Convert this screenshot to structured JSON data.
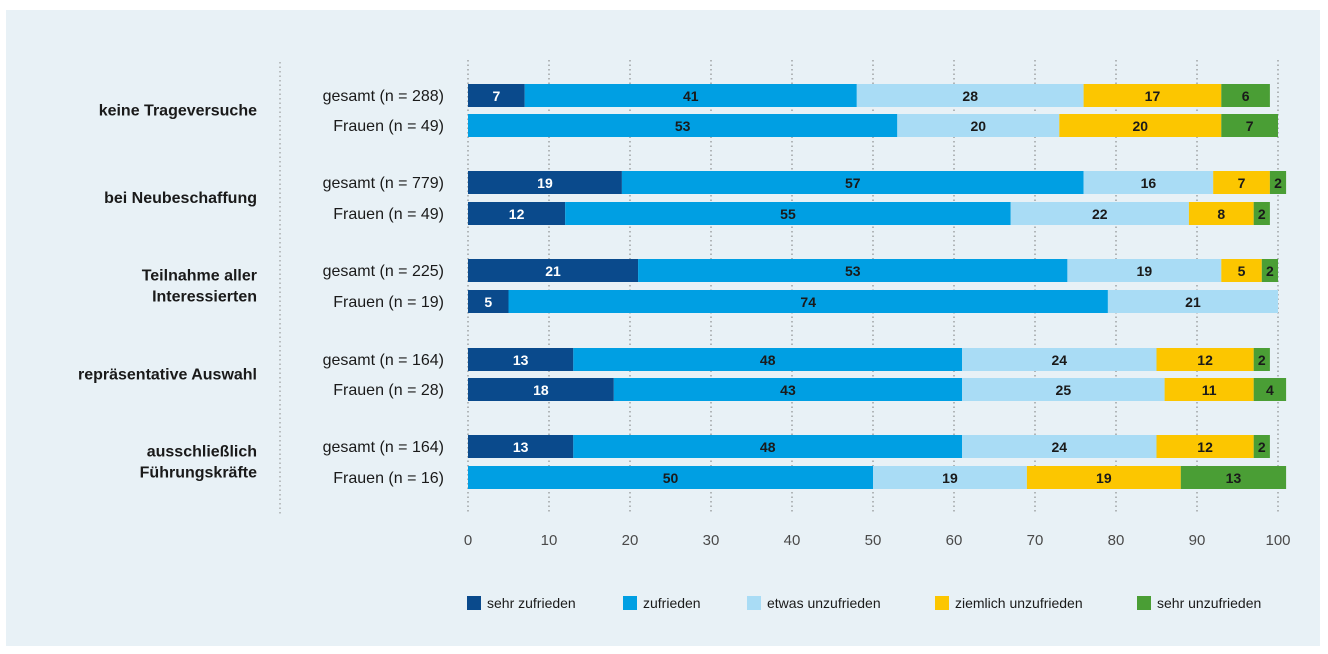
{
  "chart_data": {
    "type": "bar",
    "orientation": "horizontal-stacked",
    "xlim": [
      0,
      100
    ],
    "xticks": [
      "0",
      "10",
      "20",
      "30",
      "40",
      "50",
      "60",
      "70",
      "80",
      "90",
      "100"
    ],
    "grid": "vertical-dotted",
    "legend_position": "bottom",
    "legend": [
      {
        "name": "sehr zufrieden",
        "color": "#0a4a8c"
      },
      {
        "name": "zufrieden",
        "color": "#009fe3"
      },
      {
        "name": "etwas unzufrieden",
        "color": "#a9dcf5"
      },
      {
        "name": "ziemlich unzufrieden",
        "color": "#fcc600"
      },
      {
        "name": "sehr unzufrieden",
        "color": "#4a9e35"
      }
    ],
    "groups": [
      {
        "label_lines": [
          "keine Trageversuche"
        ],
        "rows": [
          {
            "label": "gesamt (n = 288)",
            "values": [
              7,
              41,
              28,
              17,
              6
            ]
          },
          {
            "label": "Frauen (n = 49)",
            "values": [
              0,
              53,
              20,
              20,
              7
            ]
          }
        ]
      },
      {
        "label_lines": [
          "bei Neubeschaffung"
        ],
        "rows": [
          {
            "label": "gesamt (n = 779)",
            "values": [
              19,
              57,
              16,
              7,
              2
            ]
          },
          {
            "label": "Frauen (n = 49)",
            "values": [
              12,
              55,
              22,
              8,
              2
            ]
          }
        ]
      },
      {
        "label_lines": [
          "Teilnahme aller",
          "Interessierten"
        ],
        "rows": [
          {
            "label": "gesamt (n = 225)",
            "values": [
              21,
              53,
              19,
              5,
              2
            ]
          },
          {
            "label": "Frauen (n = 19)",
            "values": [
              5,
              74,
              21,
              0,
              0
            ]
          }
        ]
      },
      {
        "label_lines": [
          "repräsentative Auswahl"
        ],
        "rows": [
          {
            "label": "gesamt (n = 164)",
            "values": [
              13,
              48,
              24,
              12,
              2
            ]
          },
          {
            "label": "Frauen (n = 28)",
            "values": [
              18,
              43,
              25,
              11,
              4
            ]
          }
        ]
      },
      {
        "label_lines": [
          "ausschließlich",
          "Führungskräfte"
        ],
        "rows": [
          {
            "label": "gesamt (n = 164)",
            "values": [
              13,
              48,
              24,
              12,
              2
            ]
          },
          {
            "label": "Frauen (n = 16)",
            "values": [
              0,
              50,
              19,
              19,
              13
            ]
          }
        ]
      }
    ]
  }
}
